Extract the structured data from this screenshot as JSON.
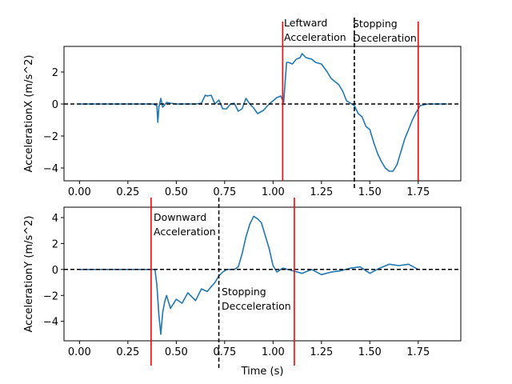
{
  "chart_data": [
    {
      "type": "line",
      "ylabel": "AccelerationX (m/s^2)",
      "xlabel": "",
      "xlim": [
        -0.08,
        1.97
      ],
      "ylim": [
        -4.8,
        3.6
      ],
      "xticks": [
        0.0,
        0.25,
        0.5,
        0.75,
        1.0,
        1.25,
        1.5,
        1.75
      ],
      "xtick_labels": [
        "0.00",
        "0.25",
        "0.50",
        "0.75",
        "1.00",
        "1.25",
        "1.50",
        "1.75"
      ],
      "yticks": [
        -4,
        -2,
        0,
        2
      ],
      "ytick_labels": [
        "−4",
        "−2",
        "0",
        "2"
      ],
      "series": [
        {
          "color": "#1f77b4",
          "x": [
            0.0,
            0.38,
            0.4,
            0.405,
            0.41,
            0.42,
            0.43,
            0.45,
            0.47,
            0.5,
            0.55,
            0.6,
            0.63,
            0.65,
            0.66,
            0.68,
            0.7,
            0.72,
            0.74,
            0.76,
            0.78,
            0.8,
            0.82,
            0.84,
            0.86,
            0.88,
            0.9,
            0.92,
            0.95,
            0.98,
            1.0,
            1.02,
            1.04,
            1.055,
            1.07,
            1.08,
            1.1,
            1.12,
            1.14,
            1.15,
            1.17,
            1.2,
            1.22,
            1.25,
            1.28,
            1.3,
            1.32,
            1.34,
            1.36,
            1.38,
            1.4,
            1.42,
            1.44,
            1.46,
            1.48,
            1.5,
            1.52,
            1.54,
            1.56,
            1.58,
            1.6,
            1.62,
            1.64,
            1.66,
            1.68,
            1.7,
            1.72,
            1.74,
            1.76,
            1.8,
            1.85,
            1.9
          ],
          "y": [
            0.0,
            0.0,
            -0.1,
            -1.15,
            -0.2,
            0.35,
            -0.2,
            0.1,
            0.05,
            0.0,
            0.0,
            0.0,
            0.05,
            0.55,
            0.5,
            0.55,
            0.0,
            0.25,
            -0.3,
            -0.3,
            0.0,
            0.05,
            -0.45,
            -0.3,
            0.35,
            0.0,
            -0.25,
            -0.6,
            -0.4,
            0.0,
            0.2,
            0.4,
            0.5,
            0.1,
            2.6,
            2.6,
            2.5,
            2.8,
            2.9,
            3.15,
            2.9,
            2.8,
            2.6,
            2.5,
            2.0,
            1.6,
            1.4,
            1.2,
            0.8,
            0.2,
            0.05,
            -0.1,
            -0.6,
            -0.8,
            -1.4,
            -1.6,
            -2.4,
            -3.1,
            -3.6,
            -4.0,
            -4.2,
            -4.2,
            -3.8,
            -3.0,
            -2.2,
            -1.6,
            -1.0,
            -0.5,
            -0.1,
            0.0,
            0.0,
            0.0
          ]
        },
        {
          "color": "#000000",
          "dashed": true,
          "x": [
            -0.08,
            1.97
          ],
          "y": [
            0.0,
            0.0
          ]
        }
      ],
      "vlines": [
        {
          "x": 1.05,
          "color": "#ff0000",
          "dashed": false
        },
        {
          "x": 1.42,
          "color": "#000000",
          "dashed": true
        },
        {
          "x": 1.75,
          "color": "#ff0000",
          "dashed": false
        }
      ],
      "annotations": [
        {
          "lines": [
            "Leftward",
            "Acceleration"
          ]
        },
        {
          "lines": [
            "Stopping",
            "Deceleration"
          ]
        }
      ]
    },
    {
      "type": "line",
      "ylabel": "AccelerationY (m/s^2)",
      "xlabel": "Time (s)",
      "xlim": [
        -0.08,
        1.97
      ],
      "ylim": [
        -5.5,
        4.8
      ],
      "xticks": [
        0.0,
        0.25,
        0.5,
        0.75,
        1.0,
        1.25,
        1.5,
        1.75
      ],
      "xtick_labels": [
        "0.00",
        "0.25",
        "0.50",
        "0.75",
        "1.00",
        "1.25",
        "1.50",
        "1.75"
      ],
      "yticks": [
        -4,
        -2,
        0,
        2,
        4
      ],
      "ytick_labels": [
        "−4",
        "−2",
        "0",
        "2",
        "4"
      ],
      "series": [
        {
          "color": "#1f77b4",
          "x": [
            0.0,
            0.38,
            0.39,
            0.4,
            0.41,
            0.42,
            0.43,
            0.44,
            0.45,
            0.47,
            0.5,
            0.53,
            0.56,
            0.6,
            0.63,
            0.66,
            0.7,
            0.72,
            0.74,
            0.76,
            0.8,
            0.82,
            0.84,
            0.86,
            0.88,
            0.9,
            0.92,
            0.94,
            0.96,
            0.98,
            1.0,
            1.02,
            1.05,
            1.1,
            1.15,
            1.2,
            1.25,
            1.3,
            1.35,
            1.4,
            1.45,
            1.5,
            1.55,
            1.6,
            1.65,
            1.7,
            1.75
          ],
          "y": [
            0.0,
            0.0,
            0.0,
            -1.2,
            -3.5,
            -5.0,
            -3.3,
            -2.5,
            -2.0,
            -3.0,
            -2.3,
            -2.6,
            -1.8,
            -2.4,
            -1.5,
            -1.7,
            -1.0,
            -0.5,
            -0.2,
            0.0,
            0.0,
            0.2,
            1.2,
            2.5,
            3.5,
            4.1,
            3.9,
            3.6,
            2.6,
            1.6,
            0.3,
            -0.2,
            0.1,
            -0.1,
            -0.3,
            0.0,
            -0.4,
            -0.2,
            -0.1,
            0.1,
            0.2,
            -0.3,
            0.1,
            0.4,
            0.3,
            0.4,
            0.0
          ]
        },
        {
          "color": "#000000",
          "dashed": true,
          "x": [
            -0.08,
            1.97
          ],
          "y": [
            0.0,
            0.0
          ]
        }
      ],
      "vlines": [
        {
          "x": 0.37,
          "color": "#ff0000",
          "dashed": false
        },
        {
          "x": 0.72,
          "color": "#000000",
          "dashed": true
        },
        {
          "x": 1.11,
          "color": "#ff0000",
          "dashed": false
        }
      ],
      "annotations": [
        {
          "lines": [
            "Downward",
            "Acceleration"
          ]
        },
        {
          "lines": [
            "Stopping",
            "Decceleration"
          ]
        }
      ]
    }
  ]
}
